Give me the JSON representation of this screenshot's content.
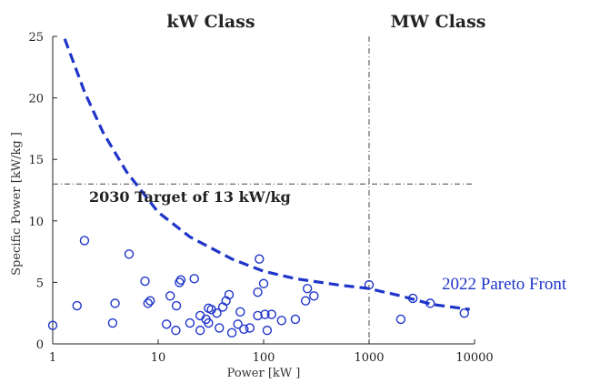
{
  "chart_data": {
    "type": "scatter",
    "xscale": "log",
    "xlim": [
      1,
      10000
    ],
    "ylim": [
      0,
      25
    ],
    "xticks": [
      1,
      10,
      100,
      1000,
      10000
    ],
    "xtick_labels": [
      "1",
      "10",
      "100",
      "1000",
      "10000"
    ],
    "yticks": [
      0,
      5,
      10,
      15,
      20,
      25
    ],
    "ytick_labels": [
      "0",
      "5",
      "10",
      "15",
      "20",
      "25"
    ],
    "xlabel": "Power [kW ]",
    "ylabel": "Specific Power [kW/kg ]",
    "grid": false,
    "colors": {
      "series": "#1f35c9",
      "reference": "#444444"
    },
    "regions": [
      {
        "label": "kW Class",
        "x_center": 31.6
      },
      {
        "label": "MW Class",
        "x_center": 3162
      }
    ],
    "reference_lines": [
      {
        "orientation": "horizontal",
        "y": 13,
        "style": "dash-dot",
        "label": "2030 Target of 13 kW/kg"
      },
      {
        "orientation": "vertical",
        "x": 1000,
        "style": "dash-dot"
      }
    ],
    "pareto_front": {
      "label": "2022 Pareto Front",
      "style": "dashed",
      "x": [
        1.3,
        2,
        3,
        5,
        10,
        20,
        50,
        100,
        200,
        500,
        1000,
        2000,
        4000,
        9000
      ],
      "y": [
        24.8,
        20.5,
        17.2,
        14.0,
        10.7,
        8.7,
        6.9,
        5.9,
        5.3,
        4.8,
        4.5,
        3.9,
        3.2,
        2.8
      ]
    },
    "series": [
      {
        "marker": "open-circle",
        "points": [
          [
            1.0,
            1.5
          ],
          [
            1.7,
            3.1
          ],
          [
            2.0,
            8.4
          ],
          [
            3.7,
            1.7
          ],
          [
            3.9,
            3.3
          ],
          [
            5.3,
            7.3
          ],
          [
            7.5,
            5.1
          ],
          [
            8.0,
            3.3
          ],
          [
            8.4,
            3.5
          ],
          [
            12.0,
            1.6
          ],
          [
            13.0,
            3.9
          ],
          [
            14.7,
            1.1
          ],
          [
            14.9,
            3.1
          ],
          [
            15.9,
            5.0
          ],
          [
            16.4,
            5.2
          ],
          [
            20.0,
            1.7
          ],
          [
            22.0,
            5.3
          ],
          [
            25.0,
            1.1
          ],
          [
            25.0,
            2.3
          ],
          [
            28.4,
            2.0
          ],
          [
            30.0,
            2.9
          ],
          [
            30.0,
            1.7
          ],
          [
            32.0,
            2.8
          ],
          [
            36.0,
            2.5
          ],
          [
            38.0,
            1.3
          ],
          [
            41.0,
            3.0
          ],
          [
            44.0,
            3.5
          ],
          [
            47.0,
            4.0
          ],
          [
            50.0,
            0.9
          ],
          [
            57.0,
            1.6
          ],
          [
            60.0,
            2.6
          ],
          [
            65.0,
            1.2
          ],
          [
            74.0,
            1.3
          ],
          [
            88.0,
            2.3
          ],
          [
            88.0,
            4.2
          ],
          [
            91.0,
            6.9
          ],
          [
            100.0,
            4.9
          ],
          [
            103.0,
            2.4
          ],
          [
            108.0,
            1.1
          ],
          [
            119.0,
            2.4
          ],
          [
            148.0,
            1.9
          ],
          [
            200.0,
            2.0
          ],
          [
            250.0,
            3.5
          ],
          [
            260.0,
            4.5
          ],
          [
            300.0,
            3.9
          ],
          [
            1000.0,
            4.8
          ],
          [
            2000.0,
            2.0
          ],
          [
            2600.0,
            3.7
          ],
          [
            3800.0,
            3.3
          ],
          [
            8000.0,
            2.5
          ]
        ]
      }
    ]
  }
}
